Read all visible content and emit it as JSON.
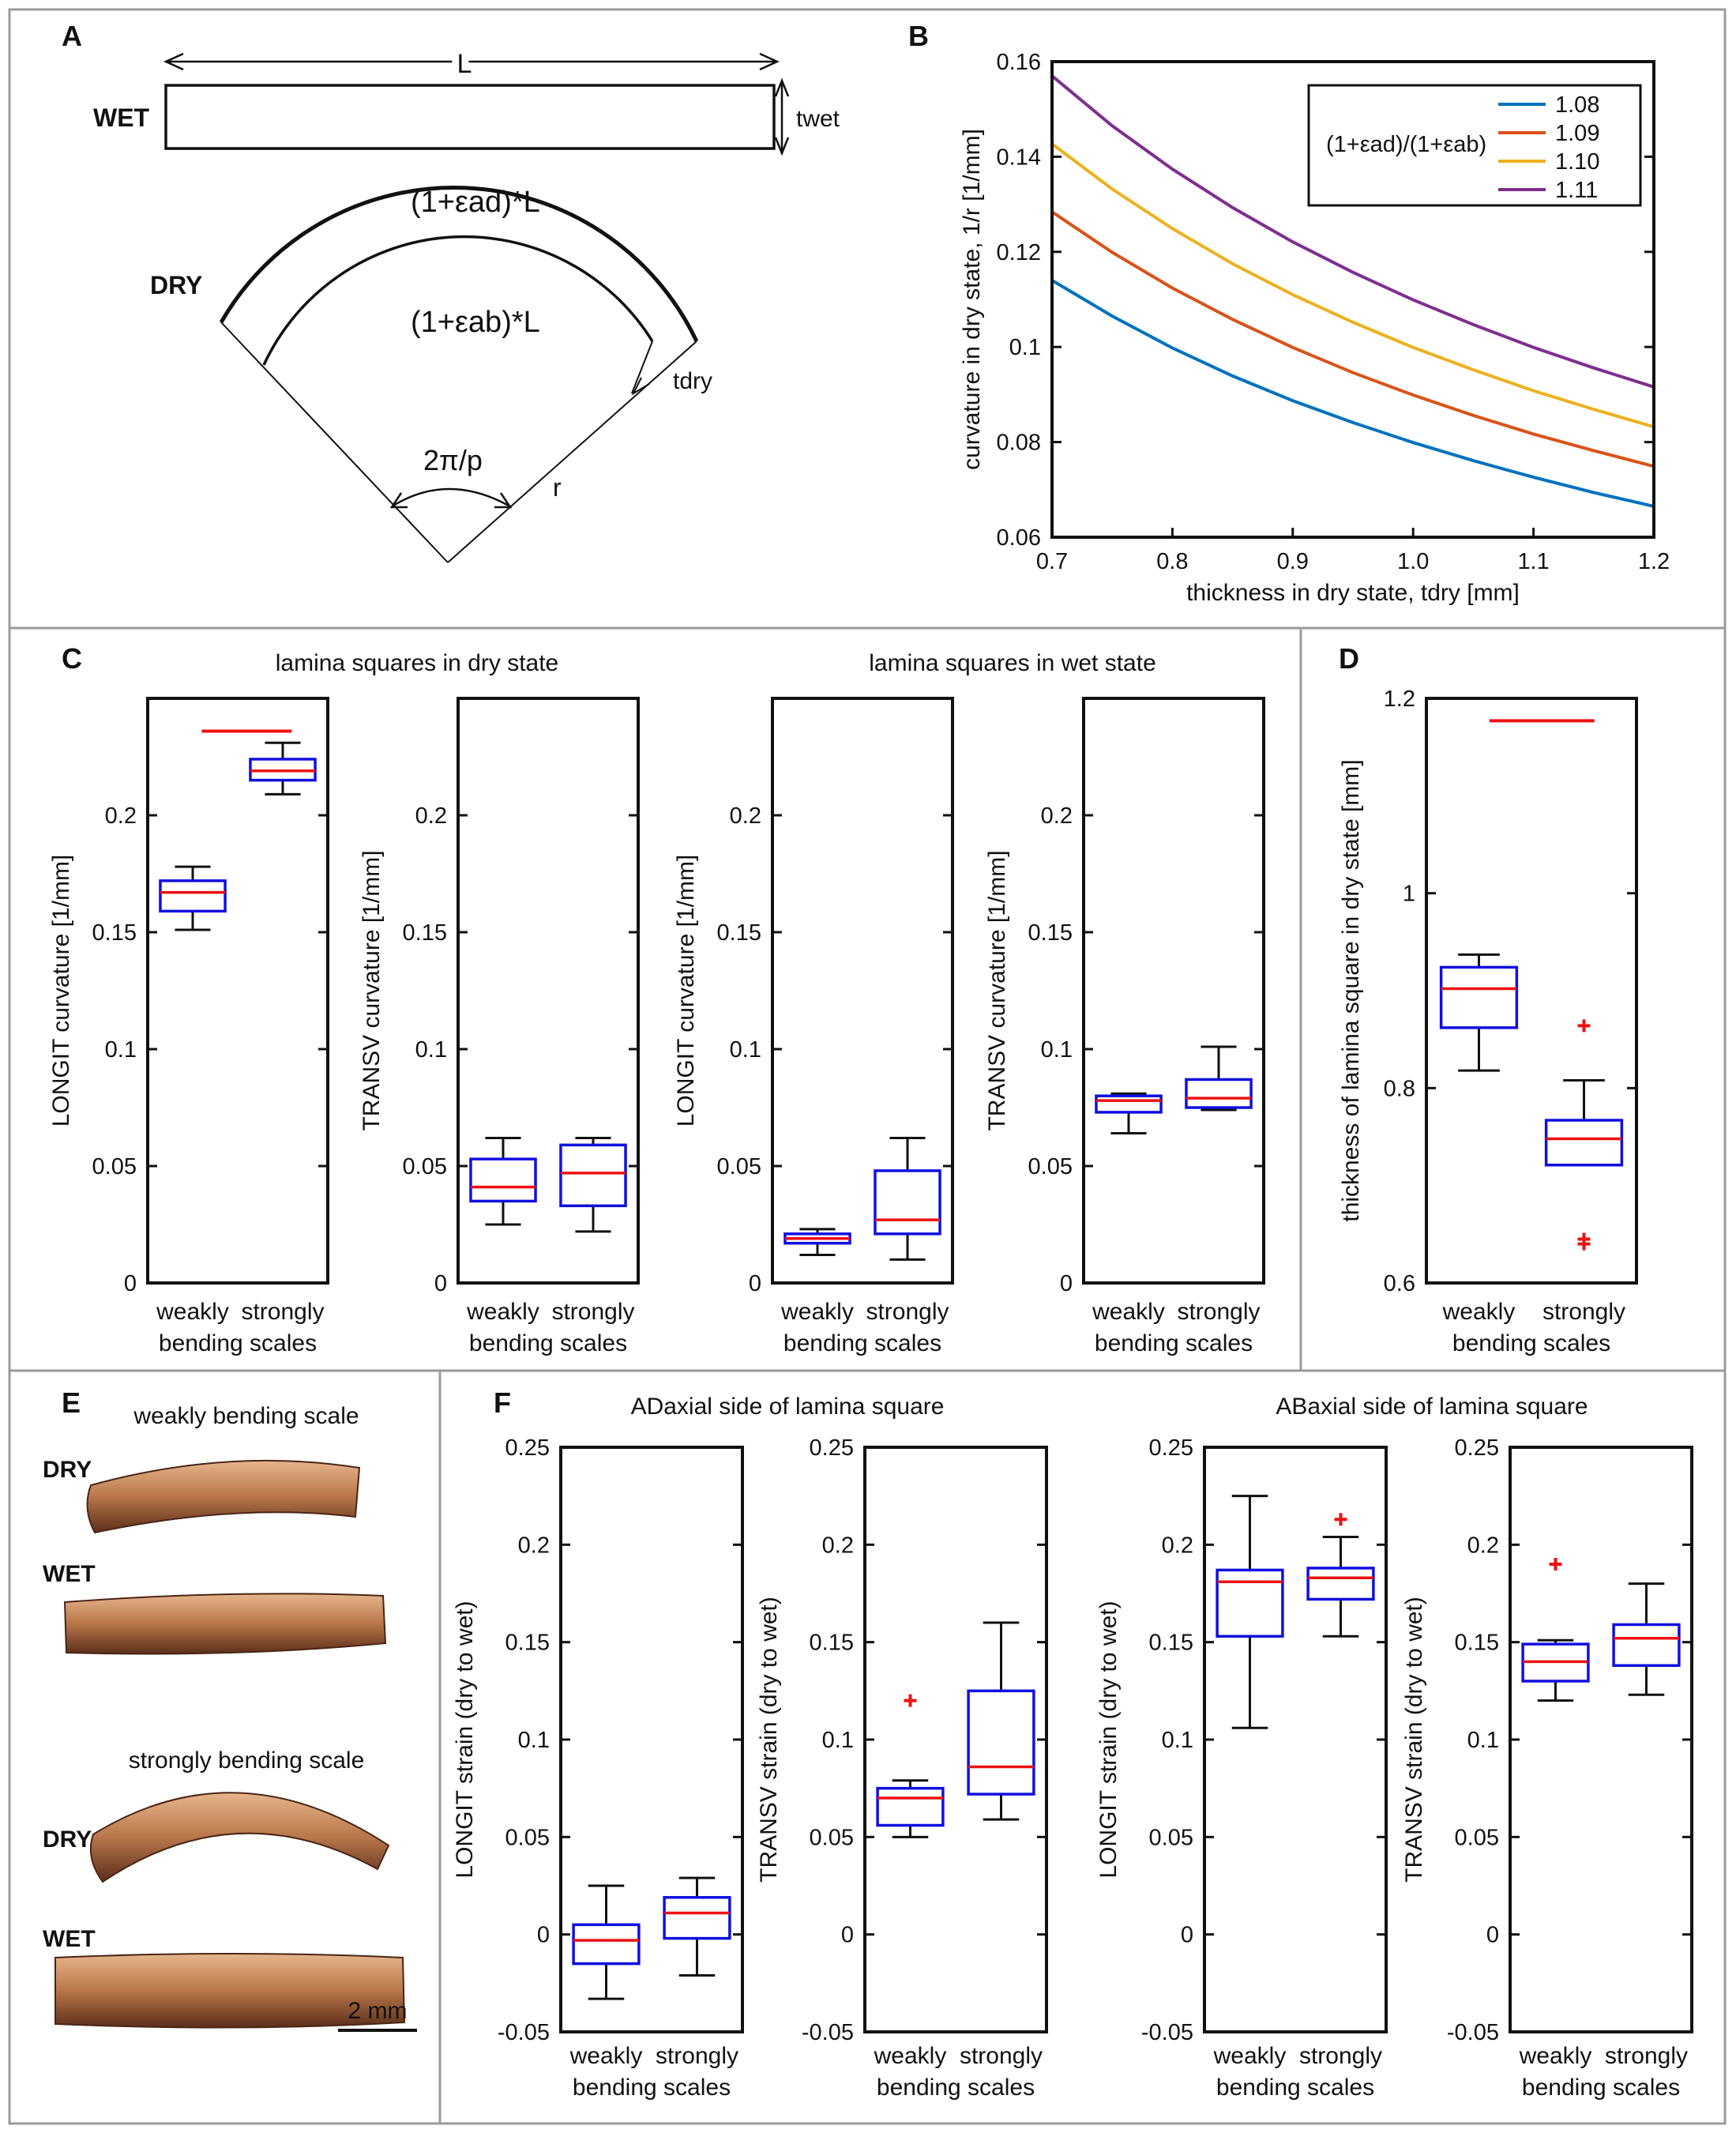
{
  "colors": {
    "box": "#1010e0",
    "median": "#ee1111",
    "whisker": "#111111",
    "outlier": "#ee1111",
    "panel_border": "#9a9a9a"
  },
  "panel_labels": [
    "A",
    "B",
    "C",
    "D",
    "E",
    "F"
  ],
  "panel_a": {
    "label_L": "L",
    "label_wet": "WET",
    "label_twet": "twet",
    "label_dry": "DRY",
    "label_outer": "(1+εad)*L",
    "label_inner": "(1+εab)*L",
    "label_tdry": "tdry",
    "label_angle": "2π/p",
    "label_r": "r"
  },
  "panel_e": {
    "title_weak": "weakly bending scale",
    "title_strong": "strongly bending scale",
    "dry": "DRY",
    "wet": "WET",
    "scalebar": "2 mm",
    "photo_colors": [
      "#8a4a2a",
      "#c98a5e",
      "#6b3a22"
    ]
  },
  "chart_data": [
    {
      "id": "B",
      "type": "line",
      "xlabel": "thickness in dry state, tdry [mm]",
      "ylabel": "curvature in dry state, 1/r [1/mm]",
      "xlim": [
        0.7,
        1.2
      ],
      "ylim": [
        0.06,
        0.16
      ],
      "xticks": [
        0.7,
        0.8,
        0.9,
        1.0,
        1.1,
        1.2
      ],
      "xtick_labels": [
        "0.7",
        "0.8",
        "0.9",
        "1.0",
        "1.1",
        "1.2"
      ],
      "yticks": [
        0.06,
        0.08,
        0.1,
        0.12,
        0.14,
        0.16
      ],
      "ytick_labels": [
        "0.06",
        "0.08",
        "0.1",
        "0.12",
        "0.14",
        "0.16"
      ],
      "legend_title": "(1+εad)/(1+εab)",
      "legend_position": "top-right",
      "x": [
        0.7,
        0.75,
        0.8,
        0.85,
        0.9,
        0.95,
        1.0,
        1.05,
        1.1,
        1.15,
        1.2
      ],
      "series": [
        {
          "name": "1.08",
          "color": "#0072bd",
          "values": [
            0.114,
            0.1065,
            0.0998,
            0.0939,
            0.0887,
            0.0841,
            0.0799,
            0.0761,
            0.0726,
            0.0694,
            0.0665
          ]
        },
        {
          "name": "1.09",
          "color": "#d95319",
          "values": [
            0.1284,
            0.1199,
            0.1124,
            0.1058,
            0.0999,
            0.0946,
            0.0899,
            0.0856,
            0.0817,
            0.0782,
            0.0749
          ]
        },
        {
          "name": "1.10",
          "color": "#edb120",
          "values": [
            0.1427,
            0.1332,
            0.1249,
            0.1175,
            0.111,
            0.1052,
            0.0999,
            0.0952,
            0.0908,
            0.0869,
            0.0832
          ]
        },
        {
          "name": "1.11",
          "color": "#7e2f8e",
          "values": [
            0.157,
            0.1465,
            0.1374,
            0.1293,
            0.1221,
            0.1157,
            0.1099,
            0.1047,
            0.0999,
            0.0956,
            0.0916
          ]
        }
      ]
    },
    {
      "id": "C",
      "type": "boxplot",
      "group_titles": [
        "lamina squares in dry state",
        "lamina squares in wet state"
      ],
      "xlabel": "bending scales",
      "categories": [
        "weakly",
        "strongly"
      ],
      "yticks": [
        0,
        0.05,
        0.1,
        0.15,
        0.2
      ],
      "ytick_labels": [
        "0",
        "0.05",
        "0.1",
        "0.15",
        "0.2"
      ],
      "subplots": [
        {
          "ylabel": "LONGIT curvature [1/mm]",
          "ylim": [
            0,
            0.25
          ],
          "boxes": [
            {
              "min": 0.151,
              "q1": 0.159,
              "median": 0.167,
              "q3": 0.172,
              "max": 0.178,
              "outliers": []
            },
            {
              "min": 0.209,
              "q1": 0.215,
              "median": 0.219,
              "q3": 0.224,
              "max": 0.231,
              "outliers": []
            }
          ],
          "significance_line": 0.236
        },
        {
          "ylabel": "TRANSV curvature [1/mm]",
          "ylim": [
            0,
            0.25
          ],
          "boxes": [
            {
              "min": 0.025,
              "q1": 0.035,
              "median": 0.041,
              "q3": 0.053,
              "max": 0.062,
              "outliers": []
            },
            {
              "min": 0.022,
              "q1": 0.033,
              "median": 0.047,
              "q3": 0.059,
              "max": 0.062,
              "outliers": []
            }
          ]
        },
        {
          "ylabel": "LONGIT curvature [1/mm]",
          "ylim": [
            0,
            0.25
          ],
          "boxes": [
            {
              "min": 0.012,
              "q1": 0.017,
              "median": 0.019,
              "q3": 0.021,
              "max": 0.023,
              "outliers": []
            },
            {
              "min": 0.01,
              "q1": 0.021,
              "median": 0.027,
              "q3": 0.048,
              "max": 0.062,
              "outliers": []
            }
          ]
        },
        {
          "ylabel": "TRANSV curvature [1/mm]",
          "ylim": [
            0,
            0.25
          ],
          "boxes": [
            {
              "min": 0.064,
              "q1": 0.073,
              "median": 0.078,
              "q3": 0.08,
              "max": 0.081,
              "outliers": []
            },
            {
              "min": 0.074,
              "q1": 0.075,
              "median": 0.079,
              "q3": 0.087,
              "max": 0.101,
              "outliers": []
            }
          ]
        }
      ]
    },
    {
      "id": "D",
      "type": "boxplot",
      "ylabel": "thickness of lamina square in dry state [mm]",
      "xlabel": "bending scales",
      "categories": [
        "weakly",
        "strongly"
      ],
      "ylim": [
        0.6,
        1.2
      ],
      "yticks": [
        0.6,
        0.8,
        1.0,
        1.2
      ],
      "ytick_labels": [
        "0.6",
        "0.8",
        "1",
        "1.2"
      ],
      "boxes": [
        {
          "min": 0.818,
          "q1": 0.862,
          "median": 0.902,
          "q3": 0.924,
          "max": 0.937,
          "outliers": []
        },
        {
          "min": 0.721,
          "q1": 0.721,
          "median": 0.748,
          "q3": 0.767,
          "max": 0.808,
          "outliers": [
            0.864,
            0.645,
            0.64
          ]
        }
      ],
      "significance_line": 1.177
    },
    {
      "id": "F",
      "type": "boxplot",
      "group_titles": [
        "ADaxial side of lamina square",
        "ABaxial side of lamina square"
      ],
      "xlabel": "bending scales",
      "categories": [
        "weakly",
        "strongly"
      ],
      "yticks": [
        -0.05,
        0,
        0.05,
        0.1,
        0.15,
        0.2,
        0.25
      ],
      "ytick_labels": [
        "-0.05",
        "0",
        "0.05",
        "0.1",
        "0.15",
        "0.2",
        "0.25"
      ],
      "subplots": [
        {
          "ylabel": "LONGIT strain (dry to wet)",
          "ylim": [
            -0.05,
            0.25
          ],
          "boxes": [
            {
              "min": -0.033,
              "q1": -0.015,
              "median": -0.003,
              "q3": 0.005,
              "max": 0.025,
              "outliers": []
            },
            {
              "min": -0.021,
              "q1": -0.002,
              "median": 0.011,
              "q3": 0.019,
              "max": 0.029,
              "outliers": []
            }
          ]
        },
        {
          "ylabel": "TRANSV strain (dry to wet)",
          "ylim": [
            -0.05,
            0.25
          ],
          "boxes": [
            {
              "min": 0.05,
              "q1": 0.056,
              "median": 0.07,
              "q3": 0.075,
              "max": 0.079,
              "outliers": [
                0.12
              ]
            },
            {
              "min": 0.059,
              "q1": 0.072,
              "median": 0.086,
              "q3": 0.125,
              "max": 0.16,
              "outliers": []
            }
          ]
        },
        {
          "ylabel": "LONGIT strain (dry to wet)",
          "ylim": [
            -0.05,
            0.25
          ],
          "boxes": [
            {
              "min": 0.106,
              "q1": 0.153,
              "median": 0.181,
              "q3": 0.187,
              "max": 0.225,
              "outliers": []
            },
            {
              "min": 0.153,
              "q1": 0.172,
              "median": 0.183,
              "q3": 0.188,
              "max": 0.204,
              "outliers": [
                0.213
              ]
            }
          ]
        },
        {
          "ylabel": "TRANSV strain (dry to wet)",
          "ylim": [
            -0.05,
            0.25
          ],
          "boxes": [
            {
              "min": 0.12,
              "q1": 0.13,
              "median": 0.14,
              "q3": 0.149,
              "max": 0.151,
              "outliers": [
                0.19
              ]
            },
            {
              "min": 0.123,
              "q1": 0.138,
              "median": 0.152,
              "q3": 0.159,
              "max": 0.18,
              "outliers": []
            }
          ]
        }
      ]
    }
  ]
}
